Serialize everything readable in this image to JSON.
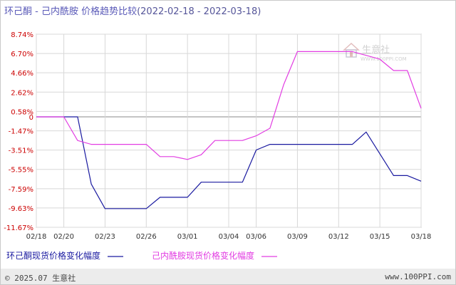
{
  "title": {
    "main": "环己酮 - 己内酰胺 价格趋势比较",
    "date_range": "(2022-02-18 - 2022-03-18)"
  },
  "watermark": {
    "logo_text": "生意社",
    "url_text": "WWW.100PPI.COM"
  },
  "footer": {
    "copyright": "© 2025.07 生意社",
    "site": "www.100PPI.com"
  },
  "colors": {
    "series1": "#1a1aa0",
    "series2": "#e23de2",
    "ytick_text": "#cc0000",
    "grid": "#d8d8d8",
    "zero_line": "#888888",
    "axis": "#999999"
  },
  "chart_data": {
    "type": "line",
    "title": "环己酮 - 己内酰胺 价格趋势比较",
    "subtitle": "(2022-02-18 - 2022-03-18)",
    "xlabel": "",
    "ylabel": "",
    "x": [
      "02/18",
      "02/19",
      "02/20",
      "02/21",
      "02/22",
      "02/23",
      "02/24",
      "02/25",
      "02/26",
      "02/27",
      "02/28",
      "03/01",
      "03/02",
      "03/03",
      "03/04",
      "03/05",
      "03/06",
      "03/07",
      "03/08",
      "03/09",
      "03/10",
      "03/11",
      "03/12",
      "03/13",
      "03/14",
      "03/15",
      "03/16",
      "03/17",
      "03/18"
    ],
    "xtick_labels": [
      "02/18",
      "02/20",
      "02/23",
      "02/26",
      "03/01",
      "03/04",
      "03/06",
      "03/09",
      "03/12",
      "03/15",
      "03/18"
    ],
    "ytick_labels": [
      "8.74%",
      "6.70%",
      "4.66%",
      "2.62%",
      "0.58%",
      "-1.47%",
      "-3.51%",
      "-5.55%",
      "-7.59%",
      "-9.63%",
      "-11.67%"
    ],
    "ytick_values": [
      8.74,
      6.7,
      4.66,
      2.62,
      0.58,
      -1.47,
      -3.51,
      -5.55,
      -7.59,
      -9.63,
      -11.67
    ],
    "zero_label": "0",
    "ylim": [
      -11.67,
      8.74
    ],
    "grid": true,
    "legend_position": "bottom",
    "series": [
      {
        "name": "环己酮现货价格变化幅度",
        "color": "#1a1aa0",
        "values": [
          0,
          0,
          0,
          0,
          -7.1,
          -9.7,
          -9.7,
          -9.7,
          -9.7,
          -8.5,
          -8.5,
          -8.5,
          -6.9,
          -6.9,
          -6.9,
          -6.9,
          -3.5,
          -2.9,
          -2.9,
          -2.9,
          -2.9,
          -2.9,
          -2.9,
          -2.9,
          -1.6,
          -3.9,
          -6.2,
          -6.2,
          -6.8
        ]
      },
      {
        "name": "己内酰胺现货价格变化幅度",
        "color": "#e23de2",
        "values": [
          0,
          0,
          0,
          -2.5,
          -2.9,
          -2.9,
          -2.9,
          -2.9,
          -2.9,
          -4.2,
          -4.2,
          -4.5,
          -4.0,
          -2.5,
          -2.5,
          -2.5,
          -2.0,
          -1.2,
          3.4,
          6.9,
          6.9,
          6.9,
          6.9,
          6.9,
          6.5,
          6.1,
          4.9,
          4.9,
          0.9
        ]
      }
    ]
  }
}
